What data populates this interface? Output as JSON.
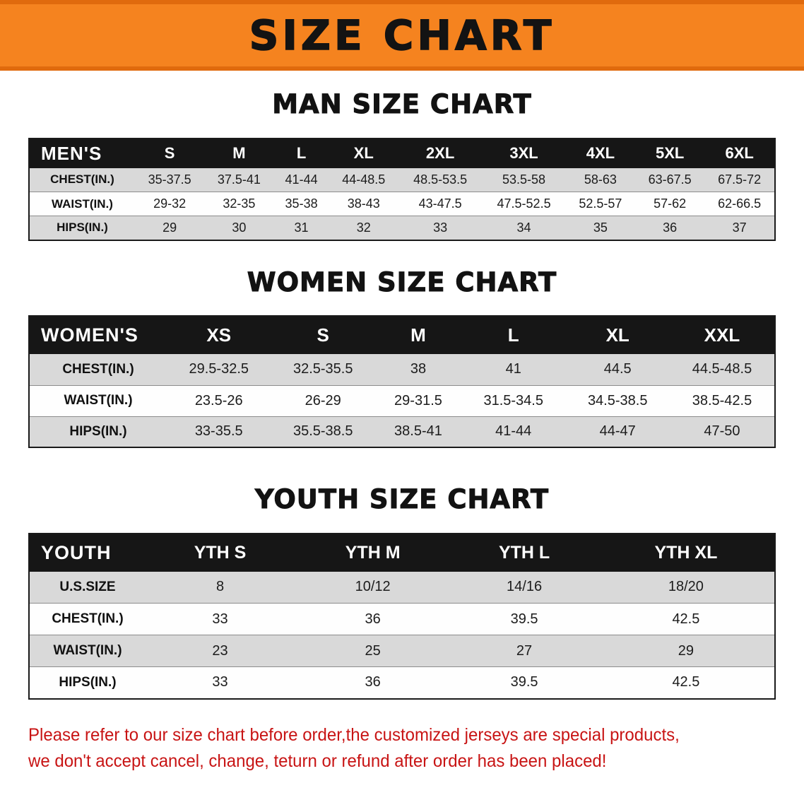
{
  "banner": {
    "title": "SIZE CHART"
  },
  "sections": [
    {
      "id": "men",
      "heading": "MAN SIZE CHART",
      "table": {
        "label": "MEN'S",
        "columns": [
          "S",
          "M",
          "L",
          "XL",
          "2XL",
          "3XL",
          "4XL",
          "5XL",
          "6XL"
        ],
        "rows": [
          {
            "label": "CHEST(IN.)",
            "values": [
              "35-37.5",
              "37.5-41",
              "41-44",
              "44-48.5",
              "48.5-53.5",
              "53.5-58",
              "58-63",
              "63-67.5",
              "67.5-72"
            ]
          },
          {
            "label": "WAIST(IN.)",
            "values": [
              "29-32",
              "32-35",
              "35-38",
              "38-43",
              "43-47.5",
              "47.5-52.5",
              "52.5-57",
              "57-62",
              "62-66.5"
            ]
          },
          {
            "label": "HIPS(IN.)",
            "values": [
              "29",
              "30",
              "31",
              "32",
              "33",
              "34",
              "35",
              "36",
              "37"
            ]
          }
        ]
      }
    },
    {
      "id": "women",
      "heading": "WOMEN SIZE CHART",
      "table": {
        "label": "WOMEN'S",
        "columns": [
          "XS",
          "S",
          "M",
          "L",
          "XL",
          "XXL"
        ],
        "rows": [
          {
            "label": "CHEST(IN.)",
            "values": [
              "29.5-32.5",
              "32.5-35.5",
              "38",
              "41",
              "44.5",
              "44.5-48.5"
            ]
          },
          {
            "label": "WAIST(IN.)",
            "values": [
              "23.5-26",
              "26-29",
              "29-31.5",
              "31.5-34.5",
              "34.5-38.5",
              "38.5-42.5"
            ]
          },
          {
            "label": "HIPS(IN.)",
            "values": [
              "33-35.5",
              "35.5-38.5",
              "38.5-41",
              "41-44",
              "44-47",
              "47-50"
            ]
          }
        ]
      }
    },
    {
      "id": "youth",
      "heading": "YOUTH SIZE CHART",
      "table": {
        "label": "YOUTH",
        "columns": [
          "YTH S",
          "YTH M",
          "YTH L",
          "YTH XL"
        ],
        "rows": [
          {
            "label": "U.S.SIZE",
            "values": [
              "8",
              "10/12",
              "14/16",
              "18/20"
            ]
          },
          {
            "label": "CHEST(IN.)",
            "values": [
              "33",
              "36",
              "39.5",
              "42.5"
            ]
          },
          {
            "label": "WAIST(IN.)",
            "values": [
              "23",
              "25",
              "27",
              "29"
            ]
          },
          {
            "label": "HIPS(IN.)",
            "values": [
              "33",
              "36",
              "39.5",
              "42.5"
            ]
          }
        ]
      }
    }
  ],
  "disclaimer": {
    "line1": "Please refer to our size chart before order,the customized jerseys are special products,",
    "line2": "we don't accept cancel, change, teturn or refund after order has been placed!"
  },
  "colors": {
    "banner_background": "#f5831f",
    "banner_border": "#e06a0d",
    "table_header_background": "#161616",
    "table_header_text": "#ffffff",
    "row_gray": "#d9d9d9",
    "row_white": "#fefefe",
    "disclaimer_text": "#c81414"
  }
}
